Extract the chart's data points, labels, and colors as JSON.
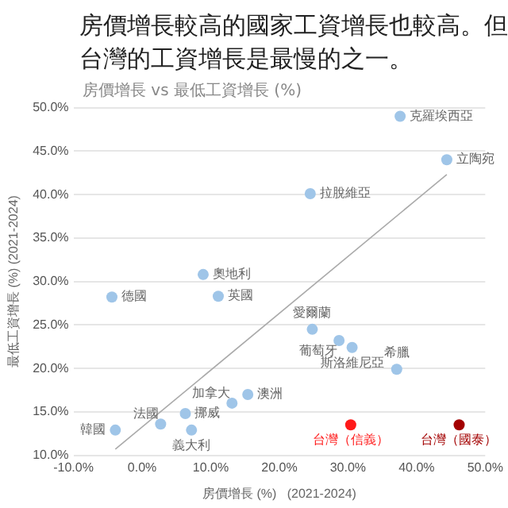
{
  "chart_data": {
    "type": "scatter",
    "title": "房價增長較高的國家工資增長也較高。但台灣的工資增長是最慢的之一。",
    "subtitle": "房價增長 vs 最低工資增長 (%)",
    "xlabel": "房價增長 (%)   (2021-2024)",
    "ylabel": "最低工資增長 (%) (2021-2024)",
    "xlim": [
      -10,
      50
    ],
    "xticks": [
      {
        "value": -10,
        "label": "-10.0%"
      },
      {
        "value": 0,
        "label": "0.0%"
      },
      {
        "value": 10,
        "label": "10.0%"
      },
      {
        "value": 20,
        "label": "20.0%"
      },
      {
        "value": 30,
        "label": "30.0%"
      },
      {
        "value": 40,
        "label": "40.0%"
      },
      {
        "value": 50,
        "label": "50.0%"
      }
    ],
    "ylim": [
      10,
      50
    ],
    "yticks": [
      {
        "value": 10,
        "label": "10.0%"
      },
      {
        "value": 15,
        "label": "15.0%"
      },
      {
        "value": 20,
        "label": "20.0%"
      },
      {
        "value": 25,
        "label": "25.0%"
      },
      {
        "value": 30,
        "label": "30.0%"
      },
      {
        "value": 35,
        "label": "35.0%"
      },
      {
        "value": 40,
        "label": "40.0%"
      },
      {
        "value": 45,
        "label": "45.0%"
      },
      {
        "value": 50,
        "label": "50.0%"
      }
    ],
    "grid": "y",
    "legend": false,
    "marker": "circle",
    "series": [
      {
        "name": "克羅埃西亞",
        "color": "#9fc5e8",
        "x": [
          37.6
        ],
        "values": [
          49.0
        ]
      },
      {
        "name": "立陶宛",
        "color": "#9fc5e8",
        "x": [
          44.4
        ],
        "values": [
          44.0
        ]
      },
      {
        "name": "拉脫維亞",
        "color": "#9fc5e8",
        "x": [
          24.5
        ],
        "values": [
          40.1
        ]
      },
      {
        "name": "奧地利",
        "color": "#9fc5e8",
        "x": [
          8.9
        ],
        "values": [
          30.8
        ]
      },
      {
        "name": "德國",
        "color": "#9fc5e8",
        "x": [
          -4.4
        ],
        "values": [
          28.2
        ]
      },
      {
        "name": "英國",
        "color": "#9fc5e8",
        "x": [
          11.1
        ],
        "values": [
          28.3
        ]
      },
      {
        "name": "愛爾蘭",
        "color": "#9fc5e8",
        "x": [
          24.8
        ],
        "values": [
          24.5
        ]
      },
      {
        "name": "葡萄牙",
        "color": "#9fc5e8",
        "x": [
          28.7
        ],
        "values": [
          23.2
        ]
      },
      {
        "name": "斯洛維尼亞",
        "color": "#9fc5e8",
        "x": [
          30.6
        ],
        "values": [
          22.4
        ]
      },
      {
        "name": "希臘",
        "color": "#9fc5e8",
        "x": [
          37.1
        ],
        "values": [
          19.9
        ]
      },
      {
        "name": "澳洲",
        "color": "#9fc5e8",
        "x": [
          15.4
        ],
        "values": [
          17.0
        ]
      },
      {
        "name": "加拿大",
        "color": "#9fc5e8",
        "x": [
          13.1
        ],
        "values": [
          16.0
        ]
      },
      {
        "name": "法國",
        "color": "#9fc5e8",
        "x": [
          2.7
        ],
        "values": [
          13.6
        ]
      },
      {
        "name": "挪威",
        "color": "#9fc5e8",
        "x": [
          6.3
        ],
        "values": [
          14.8
        ]
      },
      {
        "name": "義大利",
        "color": "#9fc5e8",
        "x": [
          7.2
        ],
        "values": [
          12.9
        ]
      },
      {
        "name": "韓國",
        "color": "#9fc5e8",
        "x": [
          -3.9
        ],
        "values": [
          12.9
        ]
      },
      {
        "name": "台灣（信義）",
        "color": "#ff1a1a",
        "x": [
          30.4
        ],
        "values": [
          13.5
        ]
      },
      {
        "name": "台灣（國泰）",
        "color": "#a30000",
        "x": [
          46.2
        ],
        "values": [
          13.5
        ]
      },
      {
        "type": "line",
        "color": "#aaaaaa",
        "x": [
          -3.9,
          44.4
        ],
        "values": [
          10.7,
          42.3
        ],
        "marker": "none"
      }
    ]
  }
}
